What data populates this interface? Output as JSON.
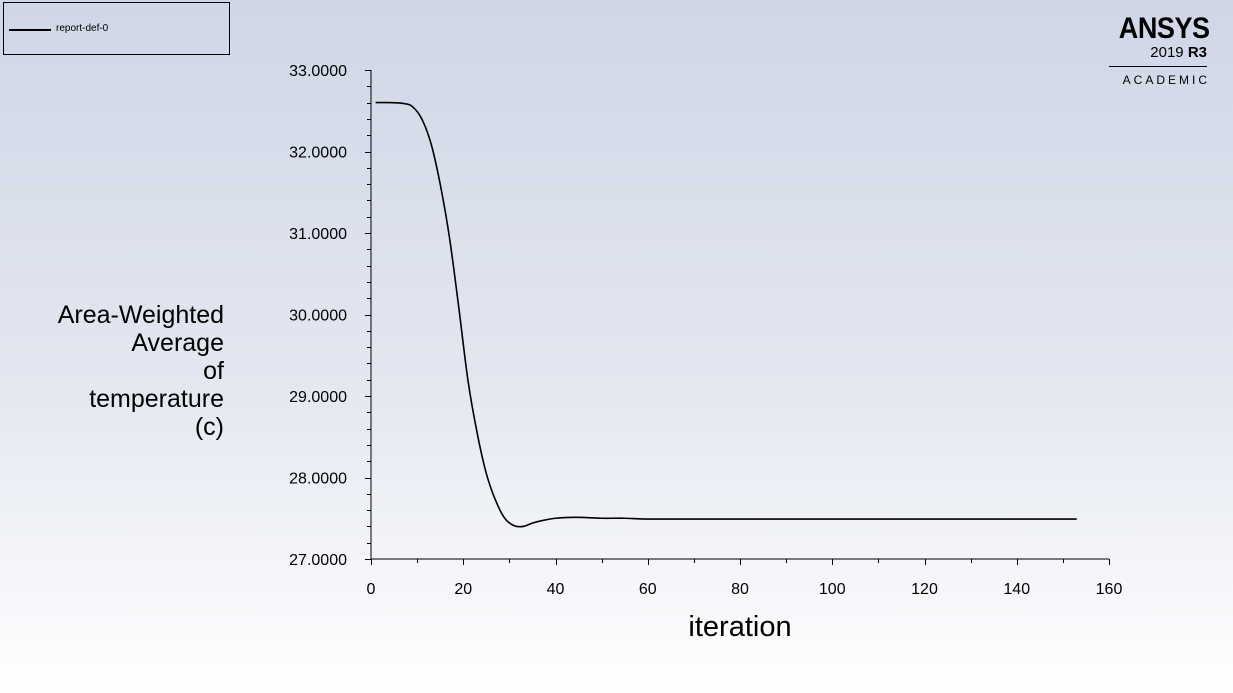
{
  "legend": {
    "entries": [
      {
        "label": "report-def-0",
        "color": "#000000"
      }
    ]
  },
  "logo": {
    "brand": "ANSYS",
    "version_year": "2019",
    "version_release": "R3",
    "edition": "ACADEMIC"
  },
  "chart_data": {
    "type": "line",
    "xlabel": "iteration",
    "ylabel_lines": [
      "Area-Weighted",
      "Average",
      "of",
      "temperature",
      "(c)"
    ],
    "xlim": [
      0,
      160
    ],
    "ylim": [
      27,
      33
    ],
    "x_ticks": [
      "0",
      "20",
      "40",
      "60",
      "80",
      "100",
      "120",
      "140",
      "160"
    ],
    "y_ticks": [
      "27.0000",
      "28.0000",
      "29.0000",
      "30.0000",
      "31.0000",
      "32.0000",
      "33.0000"
    ],
    "grid": false,
    "legend_position": "top-left",
    "series": [
      {
        "name": "report-def-0",
        "color": "#000000",
        "x": [
          1,
          4,
          7,
          9,
          11,
          13,
          15,
          17,
          19,
          21,
          23,
          25,
          27,
          29,
          31,
          33,
          35,
          37,
          40,
          43,
          46,
          50,
          55,
          60,
          70,
          80,
          100,
          120,
          140,
          153
        ],
        "y": [
          32.6,
          32.6,
          32.59,
          32.55,
          32.4,
          32.1,
          31.6,
          30.95,
          30.1,
          29.2,
          28.55,
          28.05,
          27.72,
          27.5,
          27.41,
          27.4,
          27.44,
          27.47,
          27.5,
          27.51,
          27.51,
          27.5,
          27.5,
          27.49,
          27.49,
          27.49,
          27.49,
          27.49,
          27.49,
          27.49
        ]
      }
    ]
  }
}
